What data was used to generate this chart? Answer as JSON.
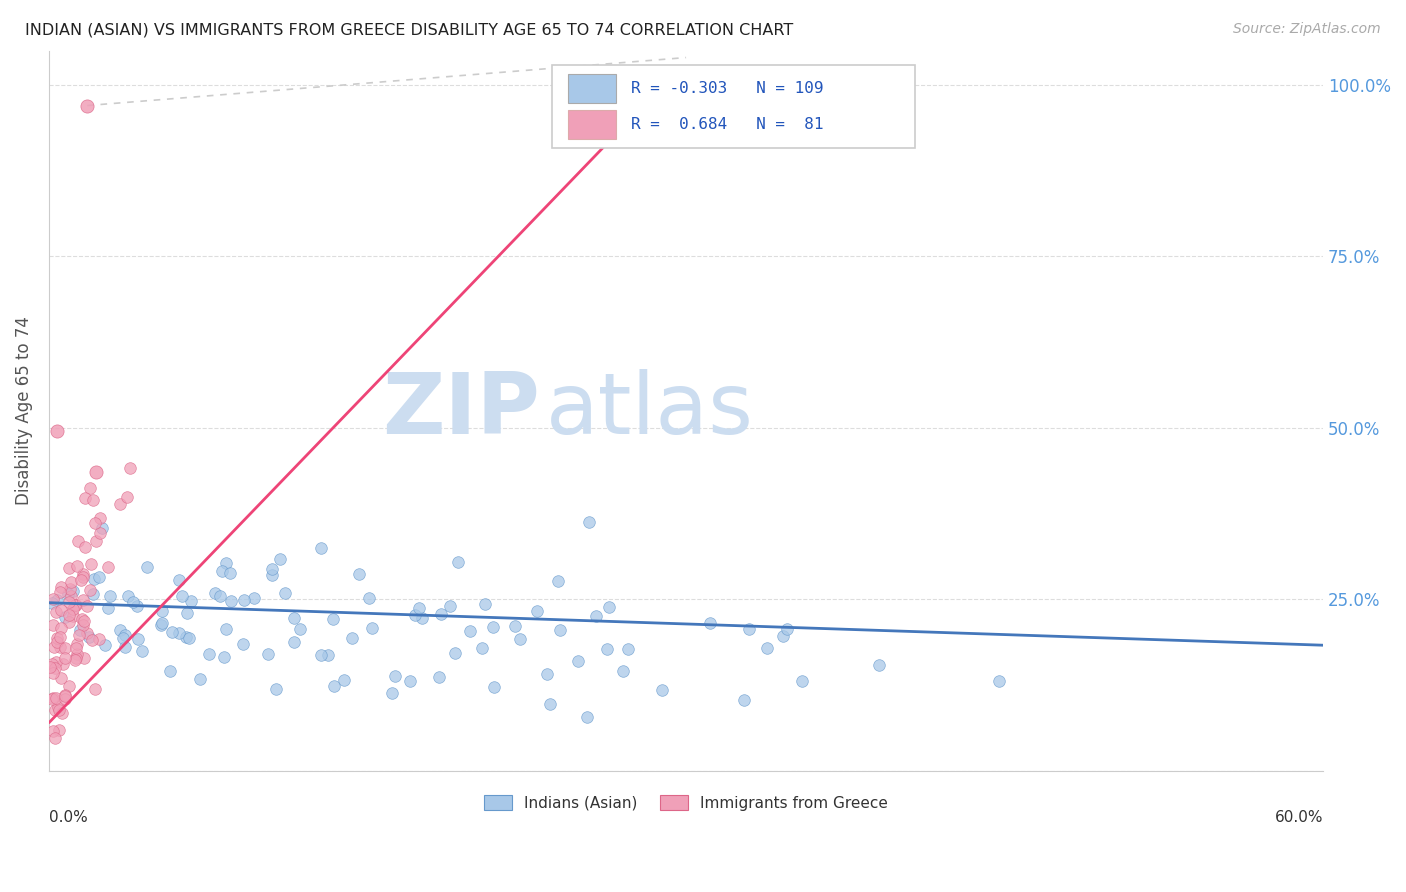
{
  "title": "INDIAN (ASIAN) VS IMMIGRANTS FROM GREECE DISABILITY AGE 65 TO 74 CORRELATION CHART",
  "source": "Source: ZipAtlas.com",
  "ylabel": "Disability Age 65 to 74",
  "blue_color": "#a8c8e8",
  "blue_edge_color": "#6699cc",
  "blue_line_color": "#4477bb",
  "pink_color": "#f0a0b8",
  "pink_edge_color": "#dd6688",
  "pink_line_color": "#ee4477",
  "background_color": "#ffffff",
  "watermark_zip": "ZIP",
  "watermark_atlas": "atlas",
  "seed": 12345,
  "blue_R": -0.303,
  "blue_N": 109,
  "pink_R": 0.684,
  "pink_N": 81,
  "xmin": 0.0,
  "xmax": 0.6,
  "ymin": 0.0,
  "ymax": 1.05,
  "right_yaxis_color": "#5599dd"
}
